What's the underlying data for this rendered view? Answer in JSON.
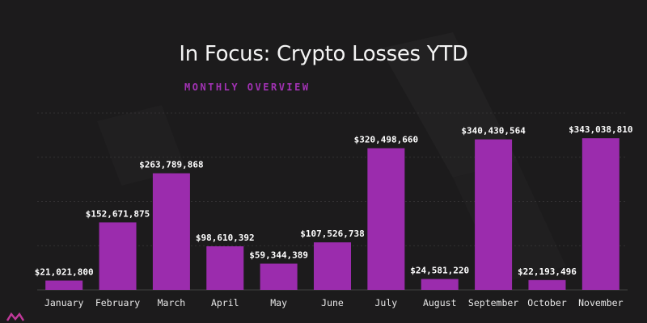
{
  "header": {
    "title": "In Focus: Crypto Losses YTD",
    "subtitle": "MONTHLY OVERVIEW"
  },
  "colors": {
    "background": "#1c1b1c",
    "bar": "#9b2cad",
    "title": "#f4f4f4",
    "subtitle": "#a232b4",
    "gridline": "#3a393a",
    "logo": "#c0399a"
  },
  "logo": {
    "icon": "chevron-logo-icon"
  },
  "chart_data": {
    "type": "bar",
    "title": "In Focus: Crypto Losses YTD",
    "subtitle": "MONTHLY OVERVIEW",
    "categories": [
      "January",
      "February",
      "March",
      "April",
      "May",
      "June",
      "July",
      "August",
      "September",
      "October",
      "November"
    ],
    "values": [
      21021800,
      152671875,
      263789868,
      98610392,
      59344389,
      107526738,
      320498660,
      24581220,
      340430564,
      22193496,
      343038810
    ],
    "data_labels": [
      "$21,021,800",
      "$152,671,875",
      "$263,789,868",
      "$98,610,392",
      "$59,344,389",
      "$107,526,738",
      "$320,498,660",
      "$24,581,220",
      "$340,430,564",
      "$22,193,496",
      "$343,038,810"
    ],
    "ylim": [
      0,
      400000000
    ],
    "grid": true,
    "legend": "none"
  }
}
